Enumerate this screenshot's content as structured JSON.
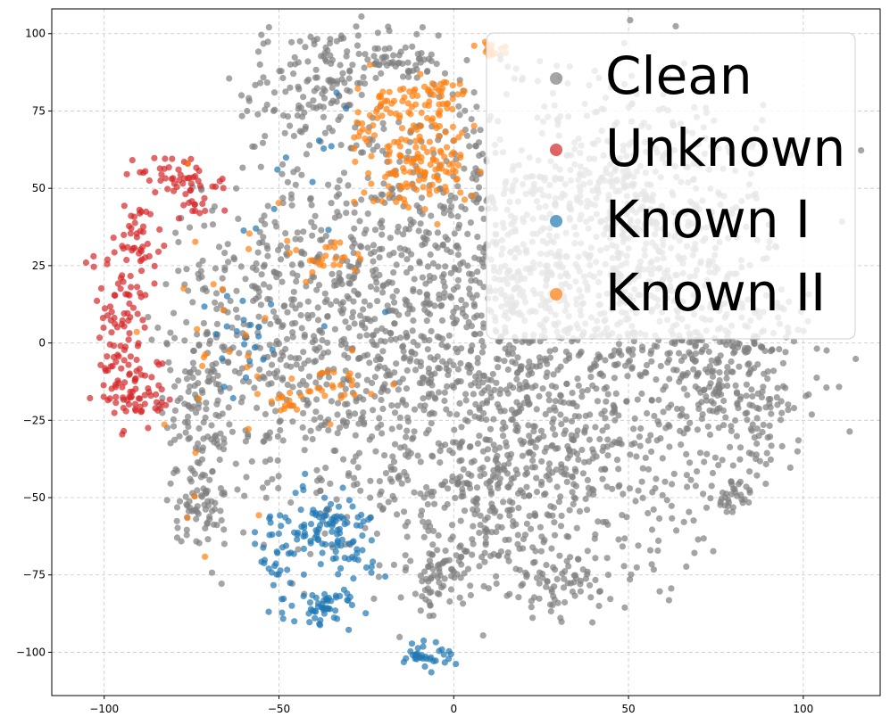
{
  "chart_data": {
    "type": "scatter",
    "title": "",
    "xlabel": "",
    "ylabel": "",
    "xlim": [
      -115,
      122
    ],
    "ylim": [
      -114,
      108
    ],
    "xticks": [
      -100,
      -50,
      0,
      50,
      100
    ],
    "yticks": [
      -100,
      -75,
      -50,
      -25,
      0,
      25,
      50,
      75,
      100
    ],
    "xtick_labels": [
      "−100",
      "−50",
      "0",
      "50",
      "100"
    ],
    "ytick_labels": [
      "−100",
      "−75",
      "−50",
      "−25",
      "0",
      "25",
      "50",
      "75",
      "100"
    ],
    "grid": true,
    "legend_position": "top-right",
    "series": [
      {
        "name": "Clean",
        "color": "#7f7f7f",
        "clusters": [
          {
            "center": [
              10,
              5
            ],
            "sx": 38,
            "sy": 40,
            "count": 1800
          },
          {
            "center": [
              50,
              40
            ],
            "sx": 20,
            "sy": 22,
            "count": 450
          },
          {
            "center": [
              80,
              -10
            ],
            "sx": 12,
            "sy": 14,
            "count": 260
          },
          {
            "center": [
              -40,
              85
            ],
            "sx": 10,
            "sy": 8,
            "count": 130
          },
          {
            "center": [
              -15,
              92
            ],
            "sx": 6,
            "sy": 4,
            "count": 60
          },
          {
            "center": [
              -73,
              -20
            ],
            "sx": 5,
            "sy": 22,
            "count": 130
          },
          {
            "center": [
              -72,
              -55
            ],
            "sx": 3,
            "sy": 6,
            "count": 50
          },
          {
            "center": [
              -5,
              -75
            ],
            "sx": 6,
            "sy": 6,
            "count": 60
          },
          {
            "center": [
              30,
              -80
            ],
            "sx": 8,
            "sy": 5,
            "count": 60
          },
          {
            "center": [
              80,
              -50
            ],
            "sx": 3,
            "sy": 3,
            "count": 30
          },
          {
            "center": [
              -45,
              5
            ],
            "sx": 14,
            "sy": 25,
            "count": 250
          },
          {
            "center": [
              15,
              -45
            ],
            "sx": 20,
            "sy": 15,
            "count": 300
          }
        ]
      },
      {
        "name": "Unknown",
        "color": "#d62728",
        "clusters": [
          {
            "center": [
              -80,
              53
            ],
            "sx": 6,
            "sy": 4,
            "count": 35
          },
          {
            "center": [
              -88,
              35
            ],
            "sx": 4,
            "sy": 5,
            "count": 35
          },
          {
            "center": [
              -95,
              12
            ],
            "sx": 4,
            "sy": 10,
            "count": 60
          },
          {
            "center": [
              -92,
              -12
            ],
            "sx": 5,
            "sy": 8,
            "count": 85
          },
          {
            "center": [
              -73,
              48
            ],
            "sx": 3,
            "sy": 5,
            "count": 25
          }
        ]
      },
      {
        "name": "Known I",
        "color": "#1f77b4",
        "clusters": [
          {
            "center": [
              -35,
              -62
            ],
            "sx": 7,
            "sy": 8,
            "count": 110
          },
          {
            "center": [
              -38,
              -85
            ],
            "sx": 5,
            "sy": 3,
            "count": 50
          },
          {
            "center": [
              -50,
              -70
            ],
            "sx": 3,
            "sy": 7,
            "count": 30
          },
          {
            "center": [
              -7,
              -101
            ],
            "sx": 4,
            "sy": 2,
            "count": 35
          },
          {
            "center": [
              -60,
              0
            ],
            "sx": 5,
            "sy": 10,
            "count": 20
          },
          {
            "center": [
              -45,
              50
            ],
            "sx": 15,
            "sy": 25,
            "count": 15
          }
        ]
      },
      {
        "name": "Known II",
        "color": "#ff7f0e",
        "clusters": [
          {
            "center": [
              -10,
              58
            ],
            "sx": 8,
            "sy": 8,
            "count": 130
          },
          {
            "center": [
              -15,
              78
            ],
            "sx": 5,
            "sy": 4,
            "count": 45
          },
          {
            "center": [
              -3,
              80
            ],
            "sx": 3,
            "sy": 3,
            "count": 25
          },
          {
            "center": [
              10,
              95
            ],
            "sx": 3,
            "sy": 1.5,
            "count": 15
          },
          {
            "center": [
              -27,
              67
            ],
            "sx": 2,
            "sy": 3,
            "count": 12
          },
          {
            "center": [
              -37,
              28
            ],
            "sx": 6,
            "sy": 3,
            "count": 25
          },
          {
            "center": [
              -33,
              -12
            ],
            "sx": 6,
            "sy": 4,
            "count": 25
          },
          {
            "center": [
              -48,
              -19
            ],
            "sx": 2,
            "sy": 2,
            "count": 12
          },
          {
            "center": [
              -65,
              -10
            ],
            "sx": 12,
            "sy": 30,
            "count": 30
          }
        ]
      }
    ]
  },
  "legend": {
    "items": [
      {
        "label": "Clean",
        "color": "#7f7f7f"
      },
      {
        "label": "Unknown",
        "color": "#d62728"
      },
      {
        "label": "Known I",
        "color": "#1f77b4"
      },
      {
        "label": "Known II",
        "color": "#ff7f0e"
      }
    ]
  }
}
